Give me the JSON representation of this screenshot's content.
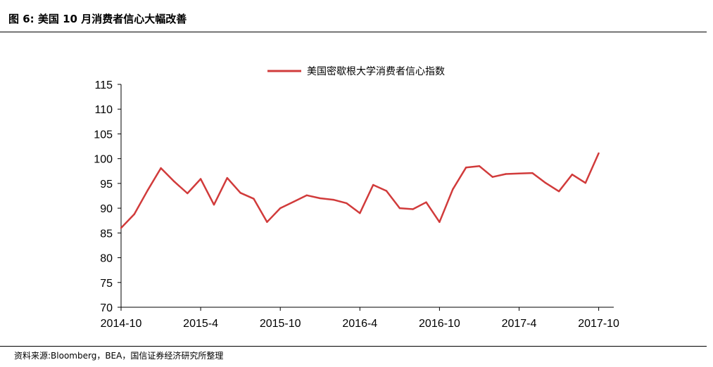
{
  "header": {
    "title": "图 6:  美国 10 月消费者信心大幅改善"
  },
  "source": {
    "text": "资料来源:Bloomberg，BEA，国信证券经济研究所整理"
  },
  "colors": {
    "series": "#d13b3b",
    "axis": "#000000",
    "text": "#000000"
  },
  "chart_data": {
    "type": "line",
    "title": "",
    "xlabel": "",
    "ylabel": "",
    "ylim": [
      70,
      115
    ],
    "yticks": [
      70,
      75,
      80,
      85,
      90,
      95,
      100,
      105,
      110,
      115
    ],
    "xtick_labels": [
      "2014-10",
      "2015-4",
      "2015-10",
      "2016-4",
      "2016-10",
      "2017-4",
      "2017-10"
    ],
    "grid": false,
    "legend_position": "top-center",
    "x": [
      "2014-10",
      "2014-11",
      "2014-12",
      "2015-1",
      "2015-2",
      "2015-3",
      "2015-4",
      "2015-5",
      "2015-6",
      "2015-7",
      "2015-8",
      "2015-9",
      "2015-10",
      "2015-11",
      "2015-12",
      "2016-1",
      "2016-2",
      "2016-3",
      "2016-4",
      "2016-5",
      "2016-6",
      "2016-7",
      "2016-8",
      "2016-9",
      "2016-10",
      "2016-11",
      "2016-12",
      "2017-1",
      "2017-2",
      "2017-3",
      "2017-4",
      "2017-5",
      "2017-6",
      "2017-7",
      "2017-8",
      "2017-9",
      "2017-10"
    ],
    "series": [
      {
        "name": "美国密歇根大学消费者信心指数",
        "values": [
          86.0,
          88.8,
          93.6,
          98.1,
          95.4,
          93.0,
          95.9,
          90.7,
          96.1,
          93.1,
          91.9,
          87.2,
          90.0,
          91.3,
          92.6,
          92.0,
          91.7,
          91.0,
          89.0,
          94.7,
          93.5,
          90.0,
          89.8,
          91.2,
          87.2,
          93.8,
          98.2,
          98.5,
          96.3,
          96.9,
          97.0,
          97.1,
          95.1,
          93.4,
          96.8,
          95.1,
          101.1
        ]
      }
    ]
  }
}
